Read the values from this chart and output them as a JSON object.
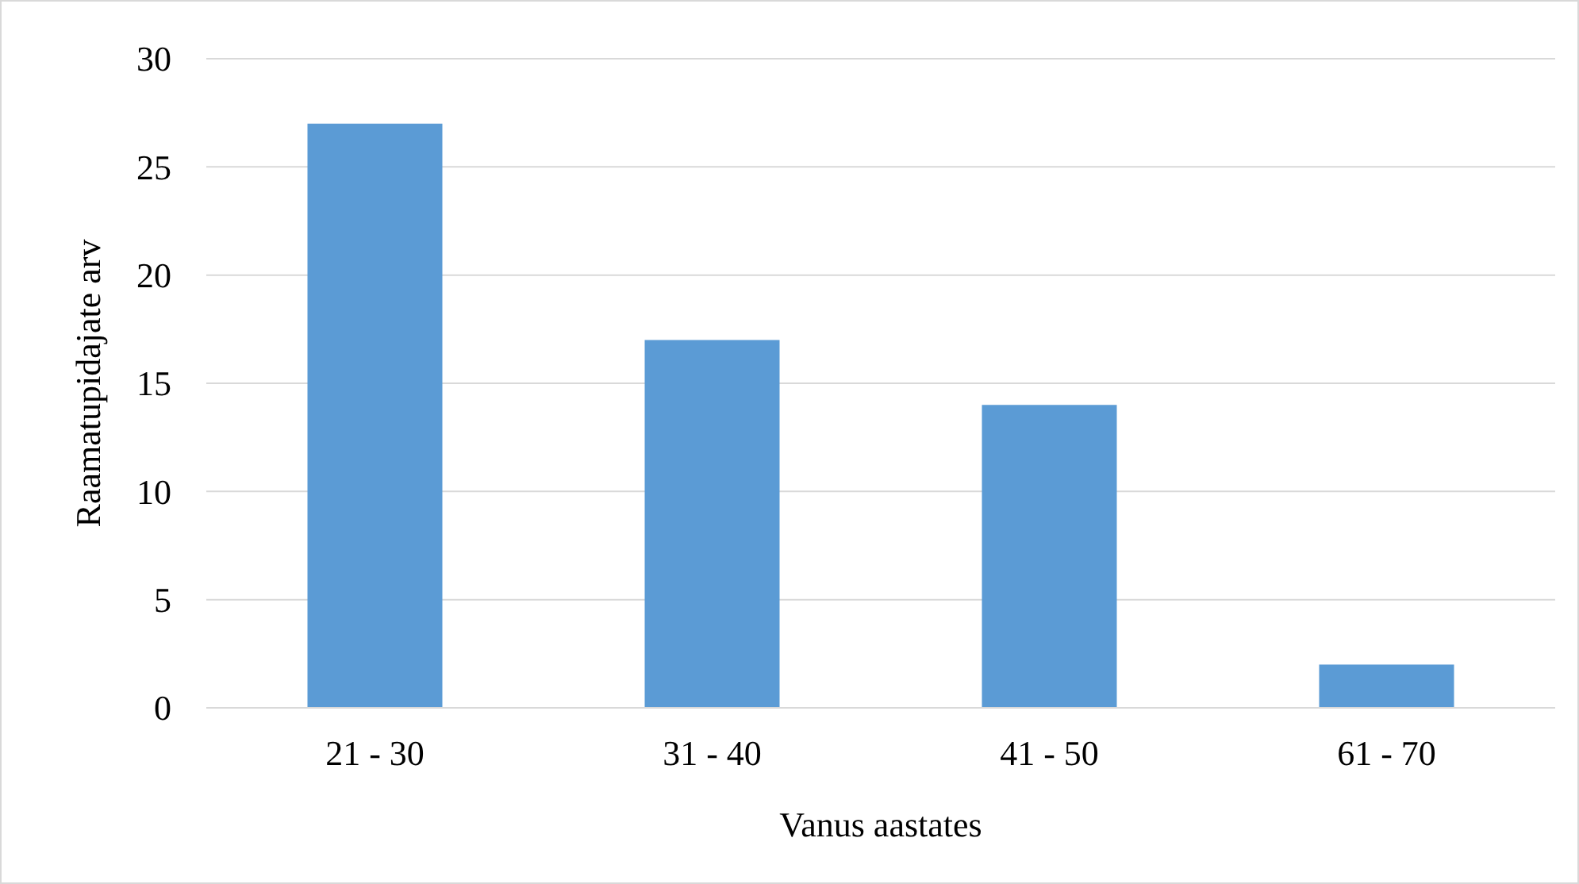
{
  "chart_data": {
    "type": "bar",
    "xlabel": "Vanus aastates",
    "ylabel": "Raamatupidajate arv",
    "categories": [
      "21 - 30",
      "31 - 40",
      "41 - 50",
      "61 - 70"
    ],
    "values": [
      27,
      17,
      14,
      2
    ],
    "color": "#5b9bd5",
    "ylim": [
      0,
      30
    ],
    "yticks": [
      0,
      5,
      10,
      15,
      20,
      25,
      30
    ],
    "grid": "y"
  }
}
